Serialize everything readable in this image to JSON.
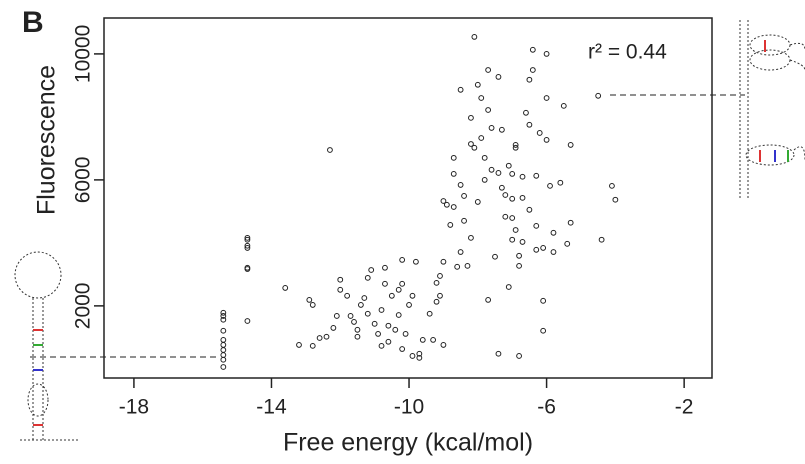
{
  "panel_label": "B",
  "chart_data": {
    "type": "scatter",
    "x_label": "Free energy (kcal/mol)",
    "y_label": "Fluorescence",
    "annotation": "r² = 0.44",
    "xlim": [
      -18.87,
      -1.19
    ],
    "ylim": [
      -290,
      11140
    ],
    "xticks": [
      -18,
      -14,
      -10,
      -6,
      -2
    ],
    "yticks": [
      2000,
      6000,
      10000
    ],
    "color": "#222222",
    "x": [
      -15.4,
      -15.4,
      -15.4,
      -15.4,
      -15.4,
      -15.4,
      -15.4,
      -15.4,
      -15.4,
      -15.4,
      -14.7,
      -14.7,
      -14.7,
      -14.7,
      -14.7,
      -14.7,
      -14.7,
      -13.6,
      -13.2,
      -12.9,
      -12.8,
      -12.8,
      -12.6,
      -12.4,
      -12.3,
      -12.2,
      -12.1,
      -12.0,
      -12.0,
      -11.8,
      -11.7,
      -11.6,
      -11.5,
      -11.5,
      -11.4,
      -11.3,
      -11.2,
      -11.2,
      -11.1,
      -11.0,
      -10.9,
      -10.8,
      -10.8,
      -10.7,
      -10.7,
      -10.6,
      -10.6,
      -10.5,
      -10.4,
      -10.3,
      -10.3,
      -10.2,
      -10.2,
      -10.2,
      -10.1,
      -10.0,
      -9.9,
      -9.9,
      -9.8,
      -9.7,
      -9.7,
      -9.6,
      -9.4,
      -9.3,
      -9.2,
      -9.2,
      -9.1,
      -9.1,
      -9.0,
      -9.0,
      -9.0,
      -8.9,
      -8.8,
      -8.7,
      -8.7,
      -8.7,
      -8.6,
      -8.5,
      -8.5,
      -8.5,
      -8.4,
      -8.4,
      -8.3,
      -8.2,
      -8.2,
      -8.2,
      -8.1,
      -8.1,
      -8.0,
      -8.0,
      -7.9,
      -7.9,
      -7.8,
      -7.8,
      -7.7,
      -7.7,
      -7.7,
      -7.6,
      -7.6,
      -7.5,
      -7.4,
      -7.4,
      -7.4,
      -7.3,
      -7.3,
      -7.2,
      -7.2,
      -7.1,
      -7.1,
      -7.0,
      -7.0,
      -7.0,
      -7.0,
      -6.9,
      -6.9,
      -6.9,
      -6.8,
      -6.8,
      -6.8,
      -6.7,
      -6.7,
      -6.7,
      -6.6,
      -6.5,
      -6.5,
      -6.5,
      -6.4,
      -6.4,
      -6.3,
      -6.3,
      -6.3,
      -6.2,
      -6.1,
      -6.1,
      -6.1,
      -6.0,
      -6.0,
      -6.0,
      -5.9,
      -5.8,
      -5.8,
      -5.6,
      -5.5,
      -5.4,
      -5.3,
      -5.3,
      -4.5,
      -4.4,
      -4.1,
      -4.0
    ],
    "values": [
      1780,
      1680,
      1560,
      1210,
      920,
      760,
      600,
      440,
      290,
      60,
      4160,
      4100,
      3910,
      3840,
      3210,
      3170,
      1520,
      2570,
      760,
      2190,
      2030,
      730,
      980,
      1020,
      6950,
      1300,
      1680,
      2830,
      2510,
      2320,
      1680,
      1490,
      1240,
      1020,
      2030,
      2250,
      1750,
      2890,
      3140,
      1430,
      1110,
      730,
      1870,
      2700,
      3210,
      1370,
      860,
      2320,
      1240,
      1710,
      2510,
      3460,
      2700,
      630,
      1110,
      2030,
      2320,
      410,
      3400,
      350,
      480,
      920,
      1750,
      920,
      2130,
      2730,
      2320,
      2950,
      3400,
      760,
      5330,
      5210,
      4570,
      6190,
      5140,
      6700,
      3240,
      3710,
      5840,
      8860,
      5490,
      4700,
      3270,
      4160,
      7140,
      7970,
      10540,
      7020,
      5300,
      9020,
      7330,
      8600,
      6700,
      6000,
      2190,
      8220,
      9490,
      7650,
      6320,
      3560,
      9270,
      480,
      6220,
      5750,
      7590,
      5520,
      4830,
      2600,
      6450,
      6190,
      5400,
      4100,
      4790,
      7020,
      7110,
      4410,
      410,
      3590,
      3270,
      4030,
      5430,
      6100,
      8130,
      7750,
      5050,
      9180,
      9490,
      10130,
      3780,
      4540,
      6130,
      7490,
      3840,
      2160,
      1210,
      10000,
      8600,
      7270,
      5810,
      4320,
      3710,
      5910,
      8350,
      3970,
      4640,
      7110,
      8670,
      4100,
      5810,
      5370
    ]
  }
}
